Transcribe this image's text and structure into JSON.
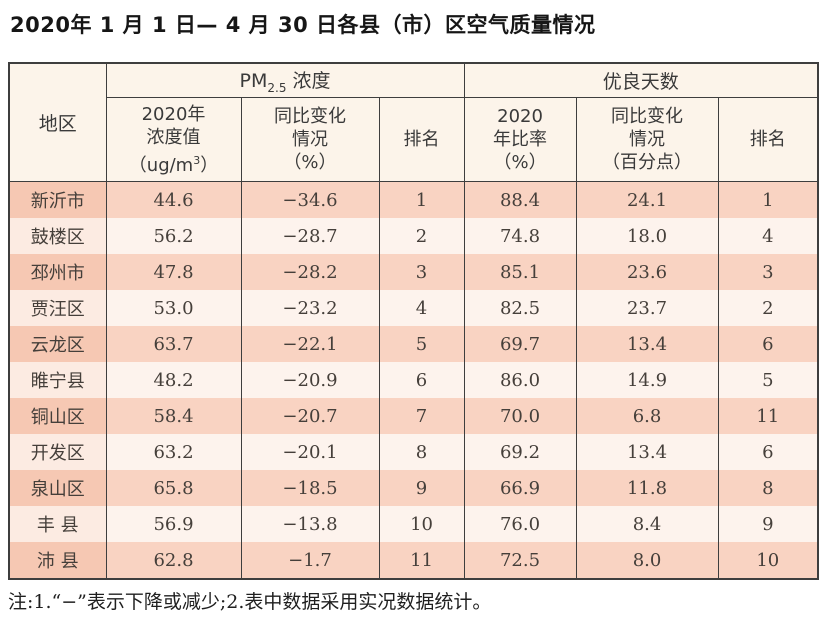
{
  "title": "2020年 1 月 1 日— 4 月 30 日各县（市）区空气质量情况",
  "note": "注:1.“−”表示下降或减少;2.表中数据采用实况数据统计。",
  "colors": {
    "row_shaded": "#f9d3c2",
    "row_shaded_region": "#f6c8b3",
    "row_plain": "#fdf3ed",
    "row_plain_region": "#fcebe2",
    "header_bg": "#fcf4ea",
    "border": "#3e3e3e",
    "text": "#453f3a"
  },
  "table": {
    "region_header": "地区",
    "pm_group": {
      "prefix": "PM",
      "subscript": "2.5",
      "suffix": " 浓度"
    },
    "days_group": "优良天数",
    "pm_value_header": {
      "line1": "2020年",
      "line2": "浓度值",
      "unit_prefix": "（ug/m",
      "unit_sup": "3",
      "unit_suffix": "）"
    },
    "pm_change_header": {
      "line1": "同比变化",
      "line2": "情况",
      "line3": "（%）"
    },
    "pm_rank_header": "排名",
    "days_rate_header": {
      "line1": "2020",
      "line2": "年比率",
      "line3": "（%）"
    },
    "days_change_header": {
      "line1": "同比变化",
      "line2": "情况",
      "line3": "（百分点）"
    },
    "days_rank_header": "排名",
    "rows": [
      {
        "region": "新沂市",
        "pm_value": "44.6",
        "pm_change": "−34.6",
        "pm_rank": "1",
        "days_rate": "88.4",
        "days_change": "24.1",
        "days_rank": "1"
      },
      {
        "region": "鼓楼区",
        "pm_value": "56.2",
        "pm_change": "−28.7",
        "pm_rank": "2",
        "days_rate": "74.8",
        "days_change": "18.0",
        "days_rank": "4"
      },
      {
        "region": "邳州市",
        "pm_value": "47.8",
        "pm_change": "−28.2",
        "pm_rank": "3",
        "days_rate": "85.1",
        "days_change": "23.6",
        "days_rank": "3"
      },
      {
        "region": "贾汪区",
        "pm_value": "53.0",
        "pm_change": "−23.2",
        "pm_rank": "4",
        "days_rate": "82.5",
        "days_change": "23.7",
        "days_rank": "2"
      },
      {
        "region": "云龙区",
        "pm_value": "63.7",
        "pm_change": "−22.1",
        "pm_rank": "5",
        "days_rate": "69.7",
        "days_change": "13.4",
        "days_rank": "6"
      },
      {
        "region": "睢宁县",
        "pm_value": "48.2",
        "pm_change": "−20.9",
        "pm_rank": "6",
        "days_rate": "86.0",
        "days_change": "14.9",
        "days_rank": "5"
      },
      {
        "region": "铜山区",
        "pm_value": "58.4",
        "pm_change": "−20.7",
        "pm_rank": "7",
        "days_rate": "70.0",
        "days_change": "6.8",
        "days_rank": "11"
      },
      {
        "region": "开发区",
        "pm_value": "63.2",
        "pm_change": "−20.1",
        "pm_rank": "8",
        "days_rate": "69.2",
        "days_change": "13.4",
        "days_rank": "6"
      },
      {
        "region": "泉山区",
        "pm_value": "65.8",
        "pm_change": "−18.5",
        "pm_rank": "9",
        "days_rate": "66.9",
        "days_change": "11.8",
        "days_rank": "8"
      },
      {
        "region": "丰 县",
        "pm_value": "56.9",
        "pm_change": "−13.8",
        "pm_rank": "10",
        "days_rate": "76.0",
        "days_change": "8.4",
        "days_rank": "9"
      },
      {
        "region": "沛 县",
        "pm_value": "62.8",
        "pm_change": "−1.7",
        "pm_rank": "11",
        "days_rate": "72.5",
        "days_change": "8.0",
        "days_rank": "10"
      }
    ]
  }
}
